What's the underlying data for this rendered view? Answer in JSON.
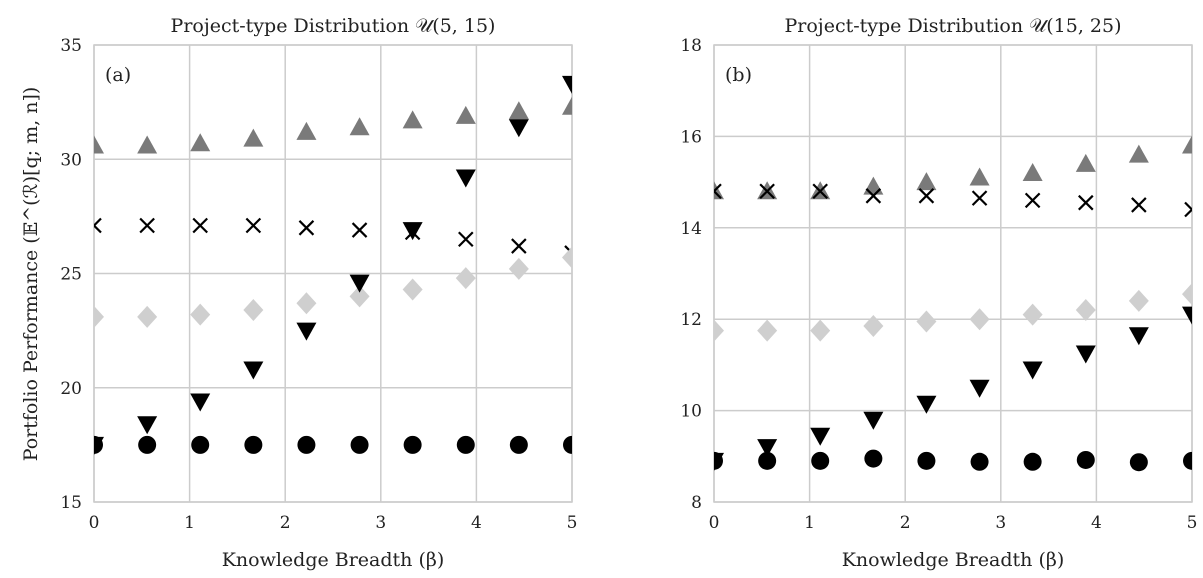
{
  "figure": {
    "ylabel": "Portfolio Performance (𝔼^(ℛ)[q; m, n])"
  },
  "chart_data": [
    {
      "type": "scatter",
      "panel_label": "(a)",
      "title": "Project-type Distribution 𝒰(5, 15)",
      "xlabel": "Knowledge Breadth (β)",
      "ylabel": "Portfolio Performance (𝔼^(ℛ)[q; m, n])",
      "xlim": [
        0,
        5
      ],
      "ylim": [
        15,
        35
      ],
      "xticks": [
        "0",
        "1",
        "2",
        "3",
        "4",
        "5"
      ],
      "yticks": [
        "15",
        "20",
        "25",
        "30",
        "35"
      ],
      "grid": true,
      "x": [
        0,
        0.556,
        1.111,
        1.667,
        2.222,
        2.778,
        3.333,
        3.889,
        4.444,
        5.0
      ],
      "series": [
        {
          "marker": "triangle-up",
          "color": "#7a7a7a",
          "values": [
            30.6,
            30.6,
            30.7,
            30.9,
            31.2,
            31.4,
            31.7,
            31.9,
            32.1,
            32.3
          ]
        },
        {
          "marker": "x",
          "color": "#000000",
          "values": [
            27.1,
            27.1,
            27.1,
            27.1,
            27.0,
            26.9,
            26.8,
            26.5,
            26.2,
            25.9
          ]
        },
        {
          "marker": "diamond",
          "color": "#cfcfcf",
          "values": [
            23.1,
            23.1,
            23.2,
            23.4,
            23.7,
            24.0,
            24.3,
            24.8,
            25.2,
            25.7
          ]
        },
        {
          "marker": "triangle-down",
          "color": "#000000",
          "values": [
            17.5,
            18.4,
            19.4,
            20.8,
            22.5,
            24.6,
            26.9,
            29.2,
            31.4,
            33.3
          ]
        },
        {
          "marker": "circle",
          "color": "#000000",
          "values": [
            17.5,
            17.5,
            17.5,
            17.5,
            17.5,
            17.5,
            17.5,
            17.5,
            17.5,
            17.5
          ]
        }
      ]
    },
    {
      "type": "scatter",
      "panel_label": "(b)",
      "title": "Project-type Distribution 𝒰(15, 25)",
      "xlabel": "Knowledge Breadth (β)",
      "ylabel": "",
      "xlim": [
        0,
        5
      ],
      "ylim": [
        8,
        18
      ],
      "xticks": [
        "0",
        "1",
        "2",
        "3",
        "4",
        "5"
      ],
      "yticks": [
        "8",
        "10",
        "12",
        "14",
        "16",
        "18"
      ],
      "grid": true,
      "x": [
        0,
        0.556,
        1.111,
        1.667,
        2.222,
        2.778,
        3.333,
        3.889,
        4.444,
        5.0
      ],
      "series": [
        {
          "marker": "triangle-up",
          "color": "#7a7a7a",
          "values": [
            14.8,
            14.8,
            14.8,
            14.9,
            15.0,
            15.1,
            15.2,
            15.4,
            15.6,
            15.8
          ]
        },
        {
          "marker": "x",
          "color": "#000000",
          "values": [
            14.8,
            14.8,
            14.8,
            14.7,
            14.7,
            14.65,
            14.6,
            14.55,
            14.5,
            14.4
          ]
        },
        {
          "marker": "diamond",
          "color": "#cfcfcf",
          "values": [
            11.75,
            11.75,
            11.75,
            11.85,
            11.95,
            12.0,
            12.1,
            12.2,
            12.4,
            12.55
          ]
        },
        {
          "marker": "triangle-down",
          "color": "#000000",
          "values": [
            8.9,
            9.2,
            9.45,
            9.8,
            10.15,
            10.5,
            10.9,
            11.25,
            11.65,
            12.1
          ]
        },
        {
          "marker": "circle",
          "color": "#000000",
          "values": [
            8.9,
            8.9,
            8.9,
            8.95,
            8.9,
            8.88,
            8.88,
            8.92,
            8.87,
            8.9
          ]
        }
      ]
    }
  ]
}
